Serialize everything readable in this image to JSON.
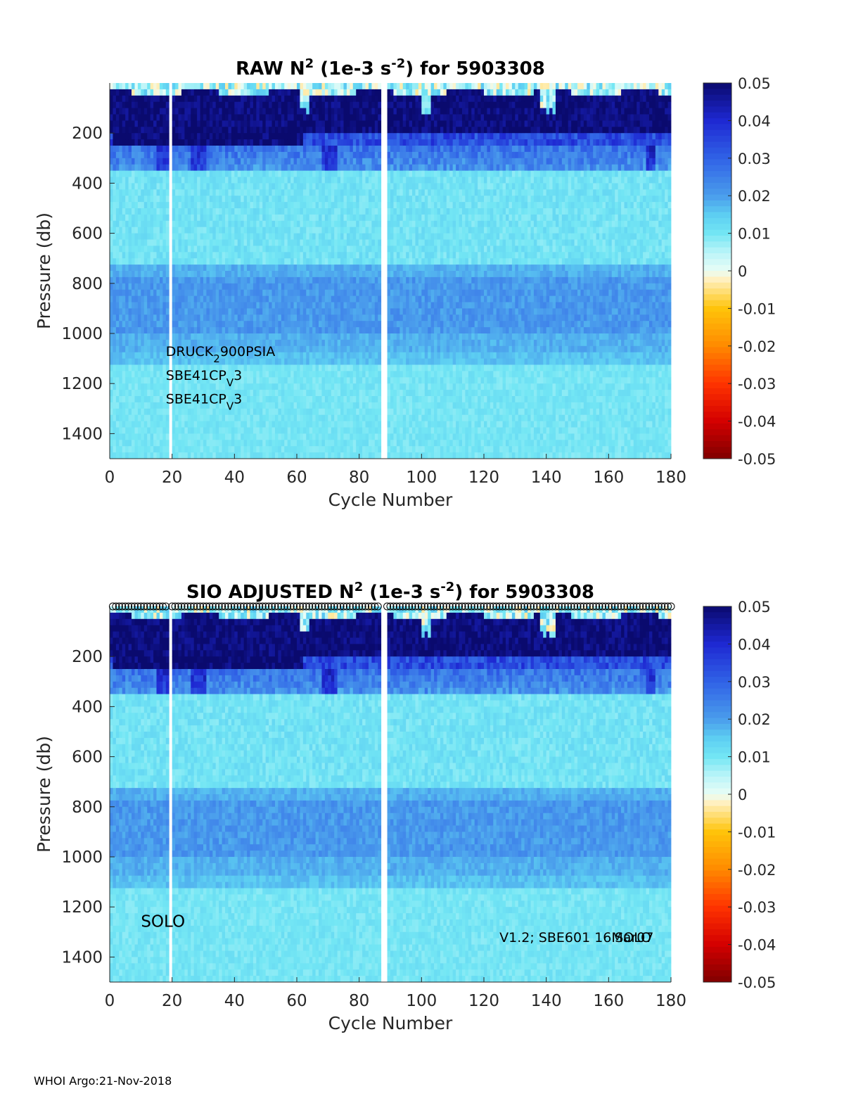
{
  "figure": {
    "footer": "WHOI Argo:21-Nov-2018"
  },
  "colormap_stops": [
    {
      "v": -0.05,
      "c": "#800000"
    },
    {
      "v": -0.04,
      "c": "#d40000"
    },
    {
      "v": -0.03,
      "c": "#ff3300"
    },
    {
      "v": -0.02,
      "c": "#ff8a00"
    },
    {
      "v": -0.01,
      "c": "#ffc40a"
    },
    {
      "v": -0.002,
      "c": "#fff2c8"
    },
    {
      "v": 0.0,
      "c": "#e8fdf6"
    },
    {
      "v": 0.005,
      "c": "#b8f4f8"
    },
    {
      "v": 0.01,
      "c": "#73e6f4"
    },
    {
      "v": 0.015,
      "c": "#5ccdf2"
    },
    {
      "v": 0.02,
      "c": "#4a9cec"
    },
    {
      "v": 0.03,
      "c": "#3062e6"
    },
    {
      "v": 0.04,
      "c": "#1e28d2"
    },
    {
      "v": 0.05,
      "c": "#0a0a6e"
    }
  ],
  "chart_data": [
    {
      "type": "heatmap",
      "title_main": "RAW N",
      "title_sup1": "2",
      "title_mid": " (1e-3 s",
      "title_sup2": "-2",
      "title_end": ") for 5903308",
      "xlabel": "Cycle Number",
      "ylabel": "Pressure (db)",
      "xlim": [
        0,
        180
      ],
      "ylim": [
        0,
        1500
      ],
      "y_reversed": true,
      "xticks": [
        0,
        20,
        40,
        60,
        80,
        100,
        120,
        140,
        160,
        180
      ],
      "yticks": [
        200,
        400,
        600,
        800,
        1000,
        1200,
        1400
      ],
      "colorbar": {
        "range": [
          -0.05,
          0.05
        ],
        "ticks": [
          0.05,
          0.04,
          0.03,
          0.02,
          0.01,
          0,
          -0.01,
          -0.02,
          -0.03,
          -0.04,
          -0.05
        ]
      },
      "gaps_cycles": [
        19,
        87,
        88
      ],
      "annotations": [
        {
          "base": "DRUCK",
          "sub": "2",
          "rest": "900PSIA",
          "x": 18,
          "y": 1090
        },
        {
          "base": "SBE41CP",
          "sub": "V",
          "rest": "3",
          "x": 18,
          "y": 1185
        },
        {
          "base": "SBE41CP",
          "sub": "V",
          "rest": "3",
          "x": 18,
          "y": 1280
        }
      ],
      "show_markers": false
    },
    {
      "type": "heatmap",
      "title_main": "SIO  ADJUSTED N",
      "title_sup1": "2",
      "title_mid": " (1e-3 s",
      "title_sup2": "-2",
      "title_end": ") for 5903308",
      "xlabel": "Cycle Number",
      "ylabel": "Pressure (db)",
      "xlim": [
        0,
        180
      ],
      "ylim": [
        0,
        1500
      ],
      "y_reversed": true,
      "xticks": [
        0,
        20,
        40,
        60,
        80,
        100,
        120,
        140,
        160,
        180
      ],
      "yticks": [
        200,
        400,
        600,
        800,
        1000,
        1200,
        1400
      ],
      "colorbar": {
        "range": [
          -0.05,
          0.05
        ],
        "ticks": [
          0.05,
          0.04,
          0.03,
          0.02,
          0.01,
          0,
          -0.01,
          -0.02,
          -0.03,
          -0.04,
          -0.05
        ]
      },
      "gaps_cycles": [
        19,
        87,
        88
      ],
      "annotations_plain": [
        {
          "text": "SOLO",
          "x": 10,
          "y": 1280
        },
        {
          "text": "V1.2; SBE601 16Mar07",
          "x": 125,
          "y": 1340
        },
        {
          "text": "SOLO",
          "x": 162,
          "y": 1340
        }
      ],
      "show_markers": true,
      "marker_symbol": "o",
      "marker_pressure": -20
    }
  ]
}
